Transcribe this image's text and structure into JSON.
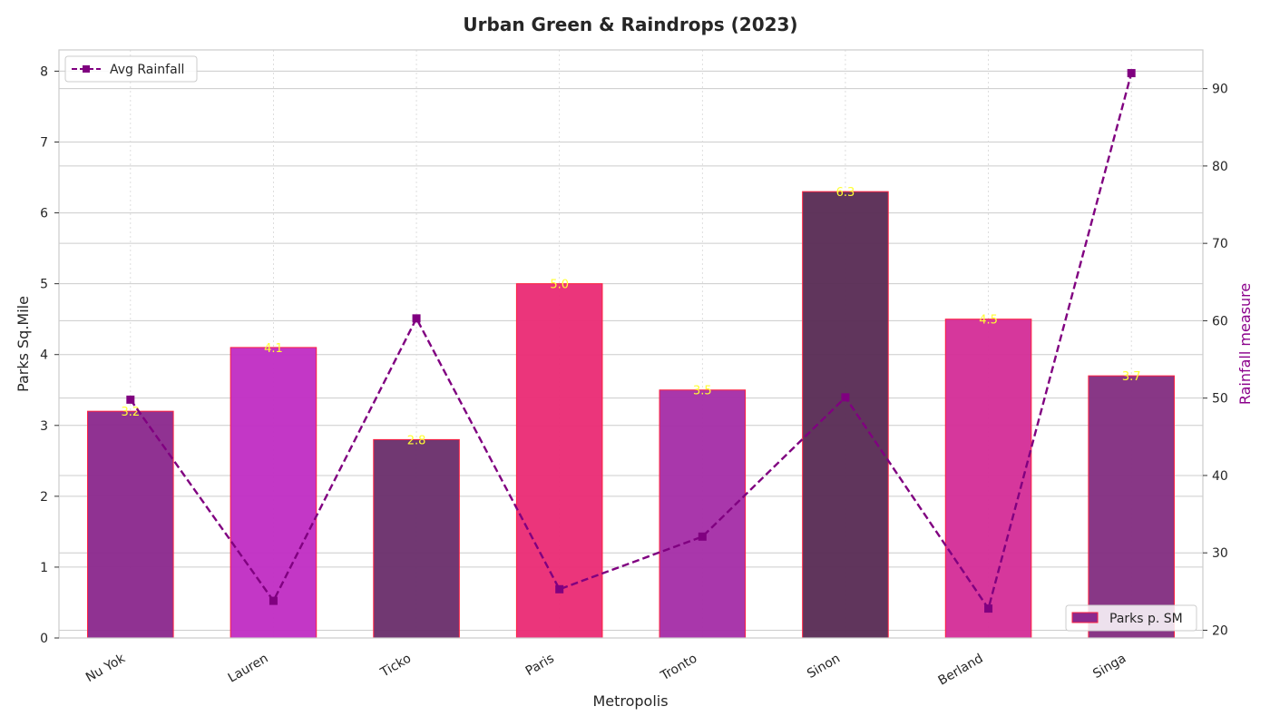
{
  "chart_data": {
    "type": "bar",
    "title": "Urban Green & Raindrops (2023)",
    "xlabel": "Metropolis",
    "ylabel": "Parks Sq.Mile",
    "y2label": "Rainfall measure",
    "categories": [
      "Nu Yok",
      "Lauren",
      "Ticko",
      "Paris",
      "Tronto",
      "Sinon",
      "Berland",
      "Singa"
    ],
    "ylim": [
      0,
      8.3
    ],
    "y2lim": [
      19,
      95
    ],
    "yticks": [
      0,
      1,
      2,
      3,
      4,
      5,
      6,
      7,
      8
    ],
    "y2ticks": [
      20,
      30,
      40,
      50,
      60,
      70,
      80,
      90
    ],
    "series": [
      {
        "name": "Parks p. SM",
        "type": "bar",
        "axis": "left",
        "values": [
          3.2,
          4.1,
          2.8,
          5.0,
          3.5,
          6.3,
          4.5,
          3.7
        ],
        "labels": [
          "3.2",
          "4.1",
          "2.8",
          "5.0",
          "3.5",
          "6.3",
          "4.5",
          "3.7"
        ],
        "colors": [
          "#8b2a8e",
          "#c12fc4",
          "#6b306c",
          "#ea2d76",
          "#a52fa8",
          "#5a2d55",
          "#d42f98",
          "#832f81"
        ],
        "edge_color": "#ff2040",
        "label_color": "#ffff33"
      },
      {
        "name": "Avg Rainfall",
        "type": "line",
        "axis": "right",
        "values": [
          49.8,
          23.8,
          60.3,
          25.3,
          32.1,
          50.1,
          22.8,
          92.0
        ],
        "color": "#800080",
        "style": "dashed",
        "marker": "square"
      }
    ],
    "legend": [
      {
        "label": "Avg Rainfall",
        "placement": "top-left"
      },
      {
        "label": "Parks p. SM",
        "placement": "bottom-right"
      }
    ],
    "grid": true,
    "colors": {
      "y2label": "#8b008b",
      "axis_frame": "#cccccc",
      "grid": "#cccccc"
    }
  }
}
